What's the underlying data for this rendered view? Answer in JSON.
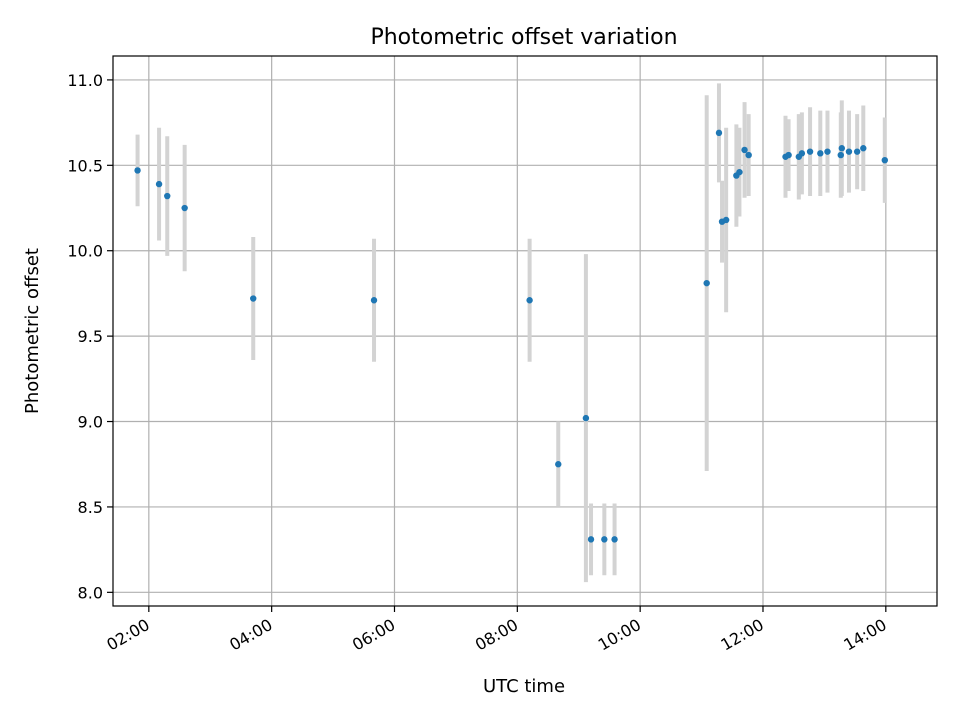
{
  "chart_data": {
    "type": "scatter",
    "title": "Photometric offset variation",
    "xlabel": "UTC time",
    "ylabel": "Photometric offset",
    "grid": true,
    "xlim": [
      "01:25",
      "14:50"
    ],
    "ylim": [
      7.92,
      11.14
    ],
    "x_ticks": [
      "02:00",
      "04:00",
      "06:00",
      "08:00",
      "10:00",
      "12:00",
      "14:00"
    ],
    "y_ticks": [
      "8.0",
      "8.5",
      "9.0",
      "9.5",
      "10.0",
      "10.5",
      "11.0"
    ],
    "colors": {
      "point": "#1f77b4",
      "errorbar": "#d3d3d3",
      "grid": "#b0b0b0"
    },
    "series": [
      {
        "points": [
          {
            "x": "01:49",
            "y": 10.47,
            "err": 0.21
          },
          {
            "x": "02:10",
            "y": 10.39,
            "err": 0.33
          },
          {
            "x": "02:18",
            "y": 10.32,
            "err": 0.35
          },
          {
            "x": "02:35",
            "y": 10.25,
            "err": 0.37
          },
          {
            "x": "03:42",
            "y": 9.72,
            "err": 0.36
          },
          {
            "x": "05:40",
            "y": 9.71,
            "err": 0.36
          },
          {
            "x": "08:12",
            "y": 9.71,
            "err": 0.36
          },
          {
            "x": "08:40",
            "y": 8.75,
            "err": 0.25
          },
          {
            "x": "09:07",
            "y": 9.02,
            "err": 0.96
          },
          {
            "x": "09:12",
            "y": 8.31,
            "err": 0.21
          },
          {
            "x": "09:25",
            "y": 8.31,
            "err": 0.21
          },
          {
            "x": "09:35",
            "y": 8.31,
            "err": 0.21
          },
          {
            "x": "11:05",
            "y": 9.81,
            "err": 1.1
          },
          {
            "x": "11:17",
            "y": 10.69,
            "err": 0.29
          },
          {
            "x": "11:20",
            "y": 10.17,
            "err": 0.24
          },
          {
            "x": "11:24",
            "y": 10.18,
            "err": 0.54
          },
          {
            "x": "11:34",
            "y": 10.44,
            "err": 0.3
          },
          {
            "x": "11:37",
            "y": 10.46,
            "err": 0.26
          },
          {
            "x": "11:42",
            "y": 10.59,
            "err": 0.28
          },
          {
            "x": "11:46",
            "y": 10.56,
            "err": 0.24
          },
          {
            "x": "12:22",
            "y": 10.55,
            "err": 0.24
          },
          {
            "x": "12:25",
            "y": 10.56,
            "err": 0.21
          },
          {
            "x": "12:35",
            "y": 10.55,
            "err": 0.25
          },
          {
            "x": "12:38",
            "y": 10.57,
            "err": 0.24
          },
          {
            "x": "12:46",
            "y": 10.58,
            "err": 0.26
          },
          {
            "x": "12:56",
            "y": 10.57,
            "err": 0.25
          },
          {
            "x": "13:03",
            "y": 10.58,
            "err": 0.24
          },
          {
            "x": "13:16",
            "y": 10.56,
            "err": 0.25
          },
          {
            "x": "13:17",
            "y": 10.6,
            "err": 0.28
          },
          {
            "x": "13:24",
            "y": 10.58,
            "err": 0.24
          },
          {
            "x": "13:32",
            "y": 10.58,
            "err": 0.22
          },
          {
            "x": "13:38",
            "y": 10.6,
            "err": 0.25
          },
          {
            "x": "13:59",
            "y": 10.53,
            "err": 0.25
          }
        ]
      }
    ]
  }
}
